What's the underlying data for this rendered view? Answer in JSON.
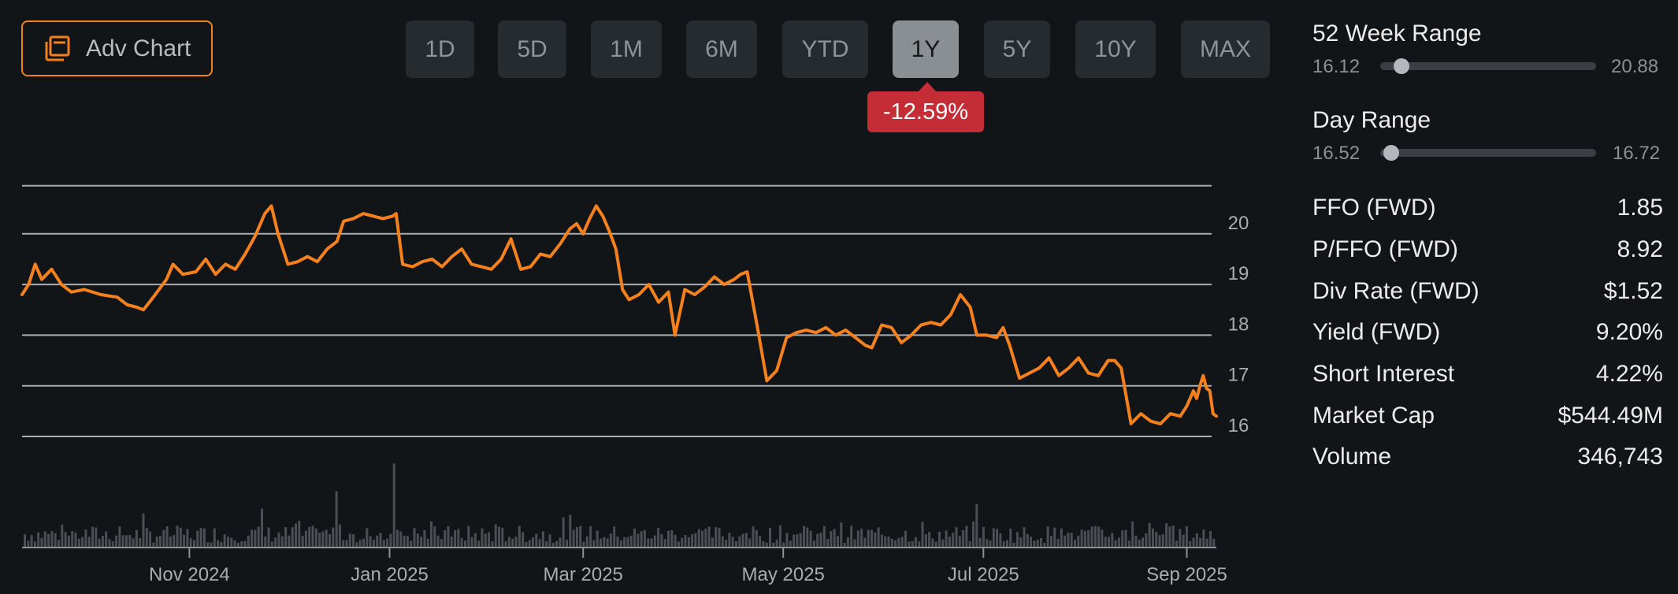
{
  "toolbar": {
    "adv_chart_label": "Adv Chart",
    "ranges": [
      "1D",
      "5D",
      "1M",
      "6M",
      "YTD",
      "1Y",
      "5Y",
      "10Y",
      "MAX"
    ],
    "active_range": "1Y",
    "change_badge": "-12.59%"
  },
  "colors": {
    "line": "#f5801e",
    "badge": "#c42d35",
    "volume": "#4a4f55",
    "grid": "#a9adb1"
  },
  "stats": {
    "week52": {
      "label": "52 Week Range",
      "min": "16.12",
      "max": "20.88",
      "position": 0.1
    },
    "day": {
      "label": "Day Range",
      "min": "16.52",
      "max": "16.72",
      "position": 0.05
    },
    "rows": [
      {
        "label": "FFO (FWD)",
        "value": "1.85"
      },
      {
        "label": "P/FFO (FWD)",
        "value": "8.92"
      },
      {
        "label": "Div Rate (FWD)",
        "value": "$1.52"
      },
      {
        "label": "Yield (FWD)",
        "value": "9.20%"
      },
      {
        "label": "Short Interest",
        "value": "4.22%"
      },
      {
        "label": "Market Cap",
        "value": "$544.49M"
      },
      {
        "label": "Volume",
        "value": "346,743"
      }
    ]
  },
  "chart_data": {
    "type": "line",
    "title": "",
    "y_ticks": [
      16,
      17,
      18,
      19,
      20
    ],
    "ylim": [
      15.8,
      21.0
    ],
    "xlim": [
      "2024-09-11",
      "2025-09-10"
    ],
    "x_ticks": [
      {
        "label": "Nov 2024",
        "date": "2024-11-01"
      },
      {
        "label": "Jan 2025",
        "date": "2025-01-01"
      },
      {
        "label": "Mar 2025",
        "date": "2025-03-01"
      },
      {
        "label": "May 2025",
        "date": "2025-05-01"
      },
      {
        "label": "Jul 2025",
        "date": "2025-07-01"
      },
      {
        "label": "Sep 2025",
        "date": "2025-09-01"
      }
    ],
    "grid": true,
    "series": [
      {
        "points": [
          [
            "2024-09-11",
            18.8
          ],
          [
            "2024-09-13",
            19.0
          ],
          [
            "2024-09-15",
            19.4
          ],
          [
            "2024-09-17",
            19.1
          ],
          [
            "2024-09-20",
            19.3
          ],
          [
            "2024-09-23",
            19.0
          ],
          [
            "2024-09-26",
            18.85
          ],
          [
            "2024-09-30",
            18.9
          ],
          [
            "2024-10-05",
            18.8
          ],
          [
            "2024-10-10",
            18.75
          ],
          [
            "2024-10-13",
            18.6
          ],
          [
            "2024-10-16",
            18.55
          ],
          [
            "2024-10-18",
            18.5
          ],
          [
            "2024-10-21",
            18.75
          ],
          [
            "2024-10-25",
            19.1
          ],
          [
            "2024-10-27",
            19.4
          ],
          [
            "2024-10-30",
            19.2
          ],
          [
            "2024-11-03",
            19.25
          ],
          [
            "2024-11-06",
            19.5
          ],
          [
            "2024-11-09",
            19.2
          ],
          [
            "2024-11-12",
            19.4
          ],
          [
            "2024-11-15",
            19.3
          ],
          [
            "2024-11-18",
            19.6
          ],
          [
            "2024-11-21",
            19.95
          ],
          [
            "2024-11-24",
            20.4
          ],
          [
            "2024-11-26",
            20.55
          ],
          [
            "2024-11-28",
            20.0
          ],
          [
            "2024-12-01",
            19.4
          ],
          [
            "2024-12-04",
            19.45
          ],
          [
            "2024-12-07",
            19.55
          ],
          [
            "2024-12-10",
            19.45
          ],
          [
            "2024-12-13",
            19.7
          ],
          [
            "2024-12-16",
            19.85
          ],
          [
            "2024-12-18",
            20.25
          ],
          [
            "2024-12-21",
            20.3
          ],
          [
            "2024-12-24",
            20.4
          ],
          [
            "2024-12-27",
            20.35
          ],
          [
            "2024-12-30",
            20.3
          ],
          [
            "2025-01-02",
            20.35
          ],
          [
            "2025-01-03",
            20.4
          ],
          [
            "2025-01-05",
            19.4
          ],
          [
            "2025-01-08",
            19.35
          ],
          [
            "2025-01-11",
            19.45
          ],
          [
            "2025-01-14",
            19.5
          ],
          [
            "2025-01-17",
            19.35
          ],
          [
            "2025-01-20",
            19.55
          ],
          [
            "2025-01-23",
            19.7
          ],
          [
            "2025-01-26",
            19.4
          ],
          [
            "2025-01-29",
            19.35
          ],
          [
            "2025-02-01",
            19.3
          ],
          [
            "2025-02-04",
            19.5
          ],
          [
            "2025-02-07",
            19.9
          ],
          [
            "2025-02-10",
            19.3
          ],
          [
            "2025-02-13",
            19.35
          ],
          [
            "2025-02-16",
            19.6
          ],
          [
            "2025-02-19",
            19.55
          ],
          [
            "2025-02-22",
            19.8
          ],
          [
            "2025-02-25",
            20.1
          ],
          [
            "2025-02-27",
            20.2
          ],
          [
            "2025-03-01",
            20.0
          ],
          [
            "2025-03-03",
            20.3
          ],
          [
            "2025-03-05",
            20.55
          ],
          [
            "2025-03-07",
            20.35
          ],
          [
            "2025-03-09",
            20.05
          ],
          [
            "2025-03-11",
            19.7
          ],
          [
            "2025-03-13",
            18.9
          ],
          [
            "2025-03-15",
            18.7
          ],
          [
            "2025-03-18",
            18.8
          ],
          [
            "2025-03-21",
            19.0
          ],
          [
            "2025-03-24",
            18.65
          ],
          [
            "2025-03-27",
            18.85
          ],
          [
            "2025-03-29",
            18.0
          ],
          [
            "2025-04-01",
            18.9
          ],
          [
            "2025-04-04",
            18.8
          ],
          [
            "2025-04-07",
            18.95
          ],
          [
            "2025-04-10",
            19.15
          ],
          [
            "2025-04-13",
            19.0
          ],
          [
            "2025-04-16",
            19.1
          ],
          [
            "2025-04-18",
            19.2
          ],
          [
            "2025-04-20",
            19.25
          ],
          [
            "2025-04-23",
            18.2
          ],
          [
            "2025-04-26",
            17.1
          ],
          [
            "2025-04-29",
            17.3
          ],
          [
            "2025-05-02",
            17.95
          ],
          [
            "2025-05-05",
            18.05
          ],
          [
            "2025-05-08",
            18.1
          ],
          [
            "2025-05-11",
            18.05
          ],
          [
            "2025-05-14",
            18.15
          ],
          [
            "2025-05-17",
            18.0
          ],
          [
            "2025-05-20",
            18.1
          ],
          [
            "2025-05-23",
            17.95
          ],
          [
            "2025-05-26",
            17.8
          ],
          [
            "2025-05-28",
            17.75
          ],
          [
            "2025-05-31",
            18.2
          ],
          [
            "2025-06-03",
            18.15
          ],
          [
            "2025-06-06",
            17.85
          ],
          [
            "2025-06-09",
            18.0
          ],
          [
            "2025-06-12",
            18.2
          ],
          [
            "2025-06-15",
            18.25
          ],
          [
            "2025-06-18",
            18.2
          ],
          [
            "2025-06-21",
            18.4
          ],
          [
            "2025-06-24",
            18.8
          ],
          [
            "2025-06-27",
            18.55
          ],
          [
            "2025-06-29",
            18.0
          ],
          [
            "2025-07-02",
            18.0
          ],
          [
            "2025-07-05",
            17.95
          ],
          [
            "2025-07-07",
            18.15
          ],
          [
            "2025-07-09",
            17.8
          ],
          [
            "2025-07-12",
            17.15
          ],
          [
            "2025-07-15",
            17.25
          ],
          [
            "2025-07-18",
            17.35
          ],
          [
            "2025-07-21",
            17.55
          ],
          [
            "2025-07-24",
            17.2
          ],
          [
            "2025-07-27",
            17.35
          ],
          [
            "2025-07-30",
            17.55
          ],
          [
            "2025-08-02",
            17.25
          ],
          [
            "2025-08-05",
            17.2
          ],
          [
            "2025-08-08",
            17.5
          ],
          [
            "2025-08-10",
            17.5
          ],
          [
            "2025-08-12",
            17.35
          ],
          [
            "2025-08-15",
            16.25
          ],
          [
            "2025-08-18",
            16.45
          ],
          [
            "2025-08-21",
            16.3
          ],
          [
            "2025-08-24",
            16.25
          ],
          [
            "2025-08-27",
            16.45
          ],
          [
            "2025-08-30",
            16.4
          ],
          [
            "2025-09-01",
            16.6
          ],
          [
            "2025-09-02",
            16.75
          ],
          [
            "2025-09-03",
            16.9
          ],
          [
            "2025-09-04",
            16.75
          ],
          [
            "2025-09-05",
            17.0
          ],
          [
            "2025-09-06",
            17.2
          ],
          [
            "2025-09-07",
            16.95
          ],
          [
            "2025-09-08",
            16.9
          ],
          [
            "2025-09-09",
            16.45
          ],
          [
            "2025-09-10",
            16.4
          ]
        ]
      }
    ],
    "volume_spikes": [
      [
        "2024-11-23",
        0.45
      ],
      [
        "2024-12-15",
        0.65
      ],
      [
        "2025-01-02",
        0.97
      ],
      [
        "2025-02-28",
        0.25
      ],
      [
        "2025-06-29",
        0.5
      ],
      [
        "2025-08-15",
        0.3
      ]
    ]
  }
}
